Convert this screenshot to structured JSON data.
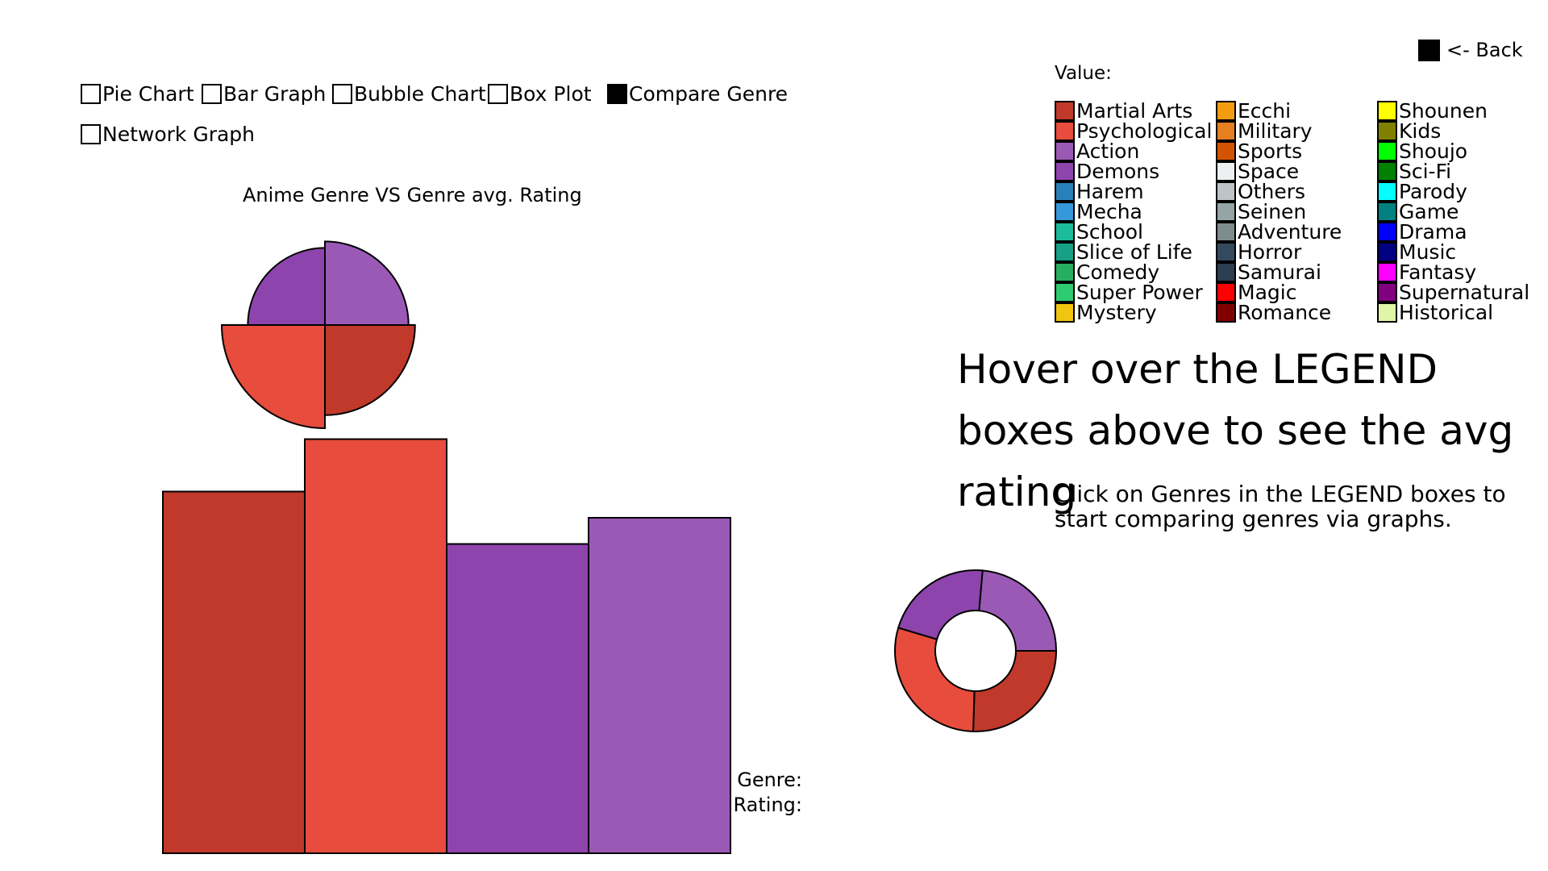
{
  "controls": {
    "checkboxes": [
      {
        "label": "Pie Chart",
        "checked": false
      },
      {
        "label": "Bar Graph",
        "checked": false
      },
      {
        "label": "Bubble Chart",
        "checked": false
      },
      {
        "label": "Box Plot",
        "checked": false
      },
      {
        "label": "Compare Genre",
        "checked": true
      },
      {
        "label": "Network Graph",
        "checked": false
      }
    ],
    "back_label": "<- Back"
  },
  "legend": {
    "title": "Value:",
    "columns": [
      [
        {
          "label": "Martial Arts",
          "color": "#c0392b"
        },
        {
          "label": "Psychological",
          "color": "#e74c3c"
        },
        {
          "label": "Action",
          "color": "#9b59b6"
        },
        {
          "label": "Demons",
          "color": "#8e44ad"
        },
        {
          "label": "Harem",
          "color": "#2980b9"
        },
        {
          "label": "Mecha",
          "color": "#3498db"
        },
        {
          "label": "School",
          "color": "#1abc9c"
        },
        {
          "label": "Slice of Life",
          "color": "#16a085"
        },
        {
          "label": "Comedy",
          "color": "#27ae60"
        },
        {
          "label": "Super Power",
          "color": "#2ecc71"
        },
        {
          "label": "Mystery",
          "color": "#f1c40f"
        }
      ],
      [
        {
          "label": "Ecchi",
          "color": "#f39c12"
        },
        {
          "label": "Military",
          "color": "#e67e22"
        },
        {
          "label": "Sports",
          "color": "#d35400"
        },
        {
          "label": "Space",
          "color": "#ecf0f1"
        },
        {
          "label": "Others",
          "color": "#bdc3c7"
        },
        {
          "label": "Seinen",
          "color": "#95a5a6"
        },
        {
          "label": "Adventure",
          "color": "#7f8c8d"
        },
        {
          "label": "Horror",
          "color": "#34495e"
        },
        {
          "label": "Samurai",
          "color": "#2c3e50"
        },
        {
          "label": "Magic",
          "color": "#ff0000"
        },
        {
          "label": "Romance",
          "color": "#800000"
        }
      ],
      [
        {
          "label": "Shounen",
          "color": "#ffff00"
        },
        {
          "label": "Kids",
          "color": "#808000"
        },
        {
          "label": "Shoujo",
          "color": "#00ff00"
        },
        {
          "label": "Sci-Fi",
          "color": "#008000"
        },
        {
          "label": "Parody",
          "color": "#00ffff"
        },
        {
          "label": "Game",
          "color": "#008080"
        },
        {
          "label": "Drama",
          "color": "#0000ff"
        },
        {
          "label": "Music",
          "color": "#000080"
        },
        {
          "label": "Fantasy",
          "color": "#ff00ff"
        },
        {
          "label": "Supernatural",
          "color": "#800080"
        },
        {
          "label": "Historical",
          "color": "#e0f5a6"
        }
      ]
    ]
  },
  "hints": {
    "hover": "Hover over the LEGEND boxes above to see the avg rating",
    "click": "Click on Genres in the LEGEND boxes to start comparing genres via graphs."
  },
  "readout": {
    "genre_label": "Genre:",
    "rating_label": "Rating:"
  },
  "chart_data": {
    "type": "bar",
    "title": "Anime Genre VS Genre avg. Rating",
    "categories": [
      "Martial Arts",
      "Psychological",
      "Demons",
      "Action"
    ],
    "values": [
      6.9,
      7.9,
      5.9,
      6.4
    ],
    "colors": [
      "#c0392b",
      "#e74c3c",
      "#8e44ad",
      "#9b59b6"
    ],
    "pie_order": [
      "Action",
      "Martial Arts",
      "Psychological",
      "Demons"
    ],
    "pie_values": [
      6.4,
      6.9,
      7.9,
      5.9
    ],
    "pie_colors": [
      "#9b59b6",
      "#c0392b",
      "#e74c3c",
      "#8e44ad"
    ],
    "donut_values": [
      6.4,
      6.9,
      7.9,
      5.9
    ]
  }
}
